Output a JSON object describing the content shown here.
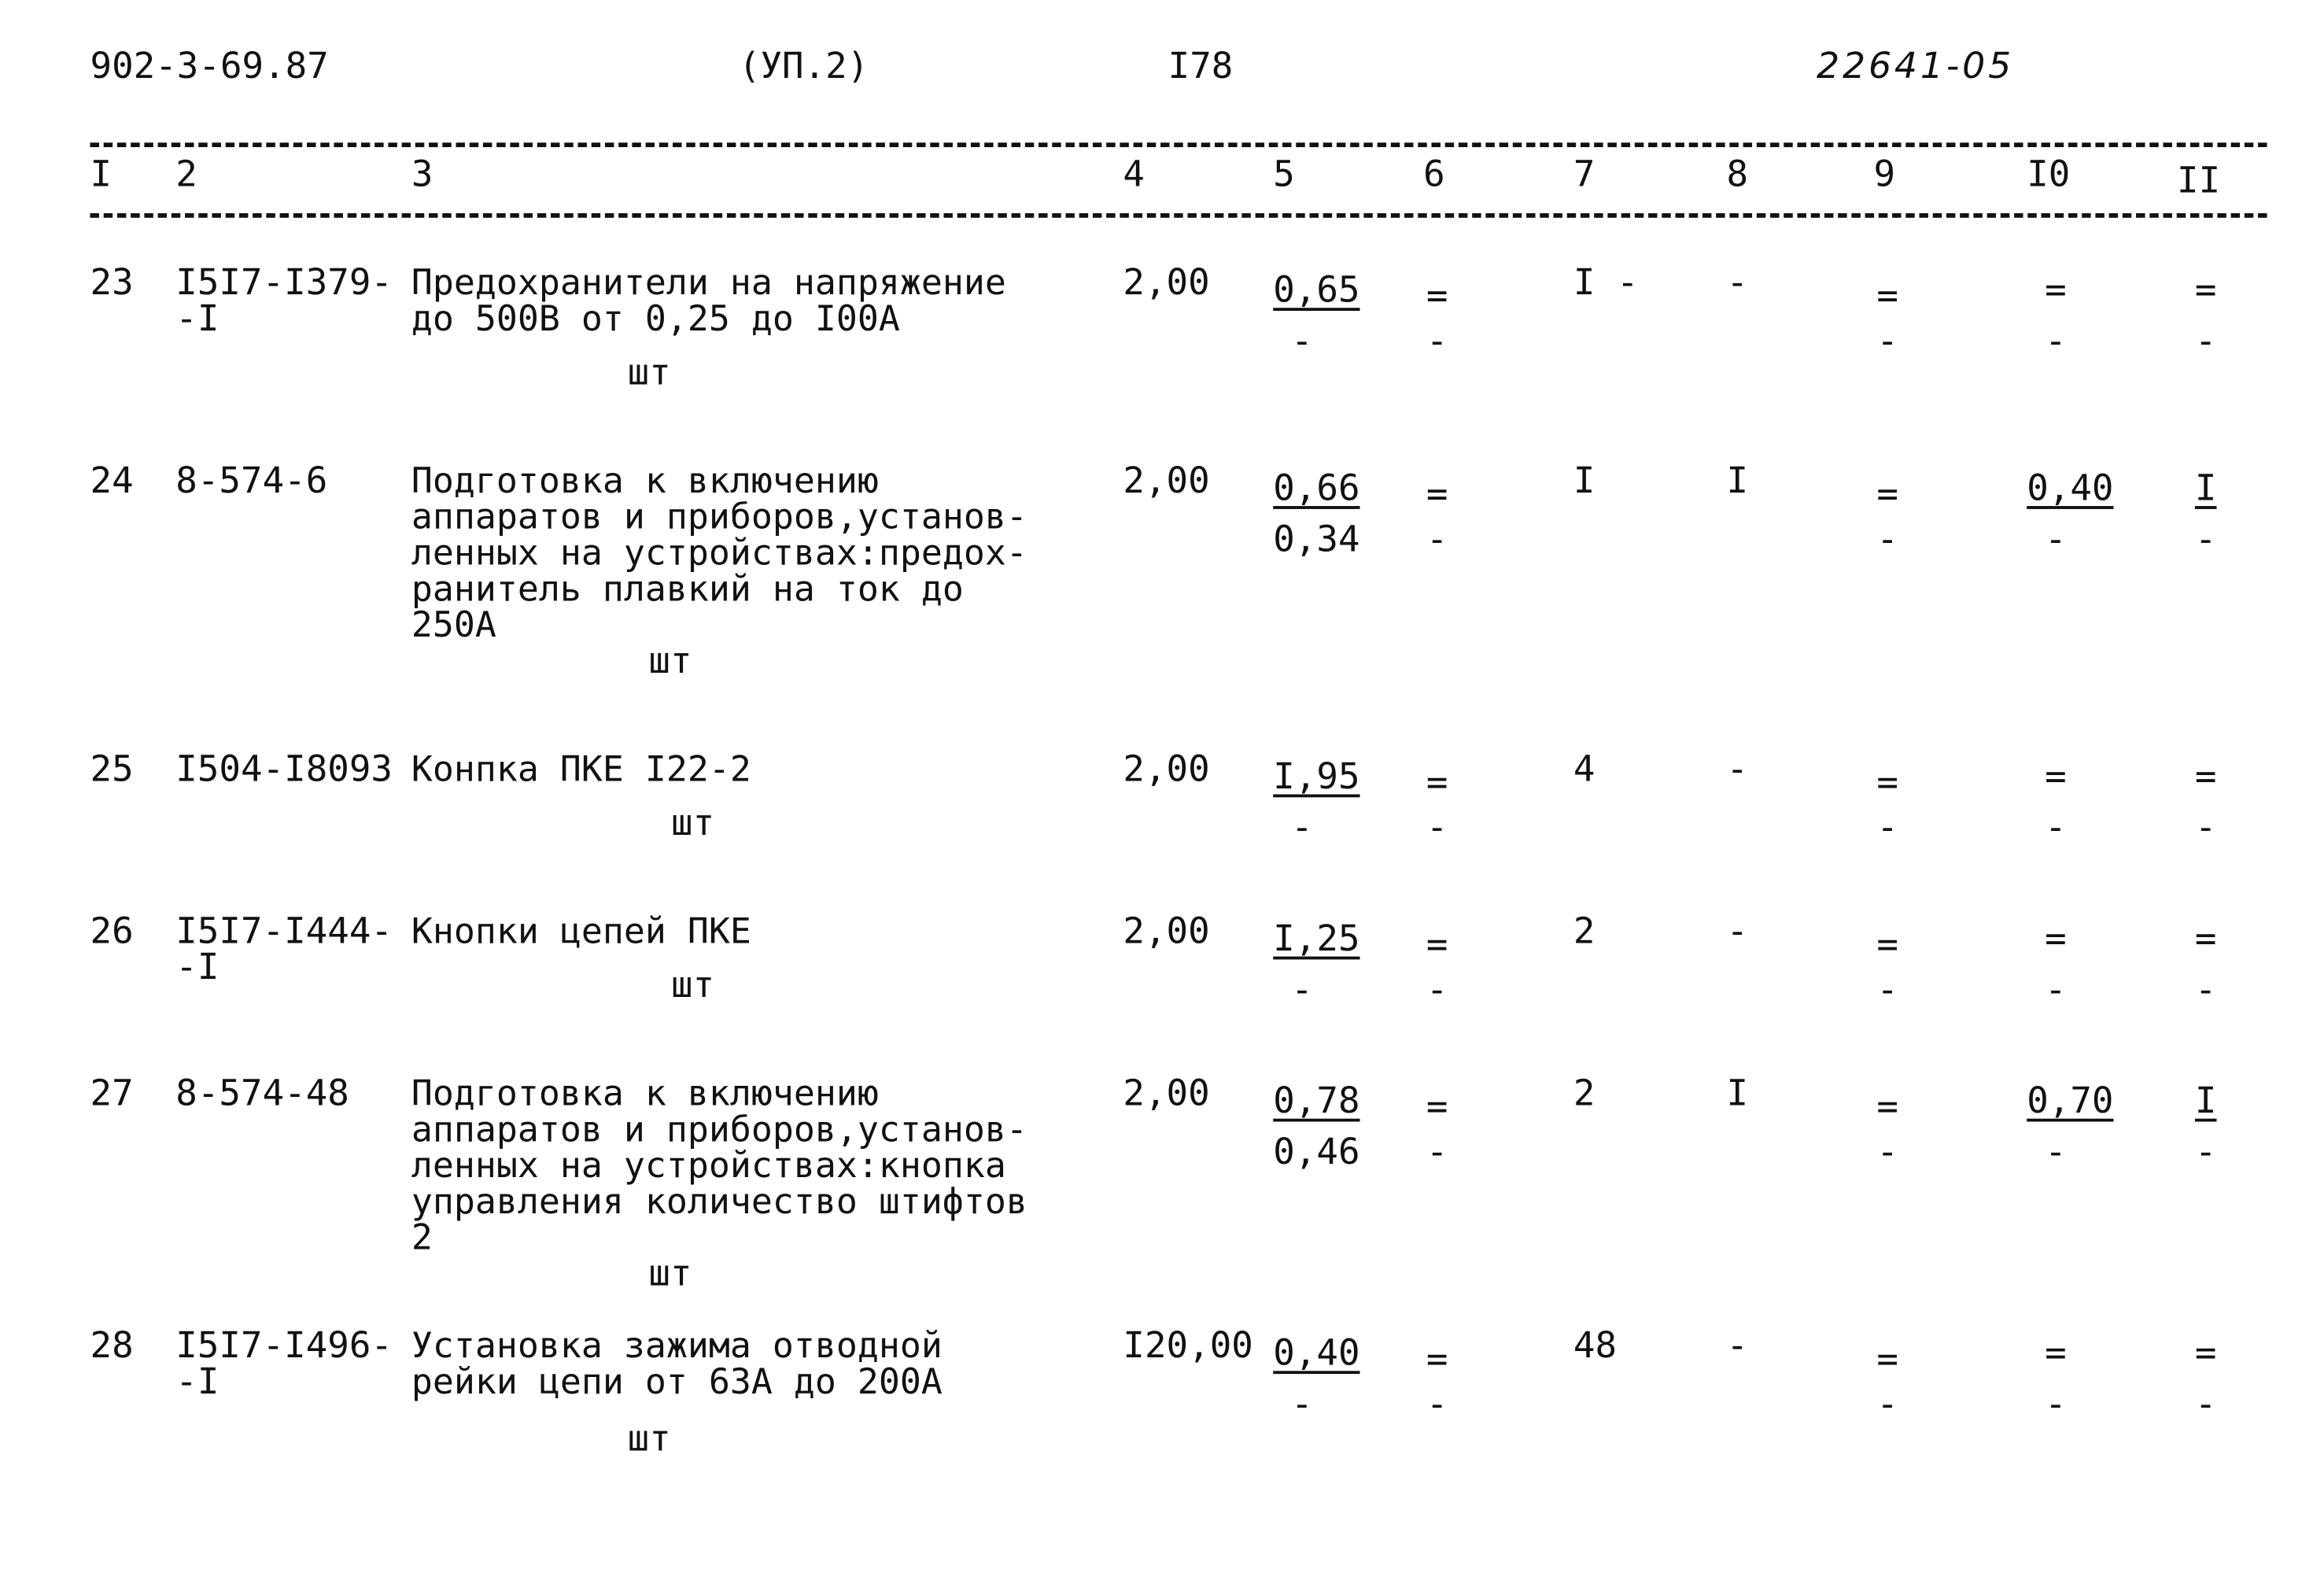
{
  "header": {
    "doc_code": "902-3-69.87",
    "section": "(УП.2)",
    "page": "I78",
    "handwritten_number": "22641-05"
  },
  "columns": [
    "I",
    "2",
    "3",
    "4",
    "5",
    "6",
    "7",
    "8",
    "9",
    "I0",
    "II"
  ],
  "rows": [
    {
      "num": "23",
      "code": [
        "I5I7-I379-",
        "-I"
      ],
      "desc": [
        "Предохранители на напряжение",
        "до 500В от 0,25 до I00А"
      ],
      "unit": "шт",
      "c4": "2,00",
      "c5": [
        {
          "t": "0,65",
          "u": true
        },
        {
          "t": "-"
        }
      ],
      "c6": [
        "=",
        "-"
      ],
      "c7": "I -",
      "c8": "-",
      "c9": [
        "=",
        "-"
      ],
      "c10": [
        {
          "t": "=",
          "u": false
        },
        {
          "t": "-"
        }
      ],
      "c11": [
        {
          "t": "="
        },
        {
          "t": "-"
        }
      ]
    },
    {
      "num": "24",
      "code": [
        "8-574-6"
      ],
      "desc": [
        "Подготовка к включению",
        "аппаратов и приборов,установ-",
        "ленных на устройствах:предох-",
        "ранитель плавкий на ток до",
        "250А"
      ],
      "unit": "шт",
      "c4": "2,00",
      "c5": [
        {
          "t": "0,66",
          "u": true
        },
        {
          "t": "0,34"
        }
      ],
      "c6": [
        "=",
        "-"
      ],
      "c7": "I",
      "c8": "I",
      "c9": [
        "=",
        "-"
      ],
      "c10": [
        {
          "t": "0,40",
          "u": true
        },
        {
          "t": "-"
        }
      ],
      "c11": [
        {
          "t": "I",
          "u": true
        },
        {
          "t": "-"
        }
      ]
    },
    {
      "num": "25",
      "code": [
        "I504-I8093"
      ],
      "desc": [
        "Конпка ПКЕ I22-2"
      ],
      "unit": "шт",
      "c4": "2,00",
      "c5": [
        {
          "t": "I,95",
          "u": true
        },
        {
          "t": "-"
        }
      ],
      "c6": [
        "=",
        "-"
      ],
      "c7": "4",
      "c8": "-",
      "c9": [
        "=",
        "-"
      ],
      "c10": [
        {
          "t": "="
        },
        {
          "t": "-"
        }
      ],
      "c11": [
        {
          "t": "="
        },
        {
          "t": "-"
        }
      ]
    },
    {
      "num": "26",
      "code": [
        "I5I7-I444-",
        "-I"
      ],
      "desc": [
        "Кнопки цепей ПКЕ"
      ],
      "unit": "шт",
      "c4": "2,00",
      "c5": [
        {
          "t": "I,25",
          "u": true
        },
        {
          "t": "-"
        }
      ],
      "c6": [
        "=",
        "-"
      ],
      "c7": "2",
      "c8": "-",
      "c9": [
        "=",
        "-"
      ],
      "c10": [
        {
          "t": "="
        },
        {
          "t": "-"
        }
      ],
      "c11": [
        {
          "t": "="
        },
        {
          "t": "-"
        }
      ]
    },
    {
      "num": "27",
      "code": [
        "8-574-48"
      ],
      "desc": [
        "Подготовка к включению",
        "аппаратов и приборов,установ-",
        "ленных на устройствах:кнопка",
        "управления количество штифтов",
        "2"
      ],
      "unit": "шт",
      "c4": "2,00",
      "c5": [
        {
          "t": "0,78",
          "u": true
        },
        {
          "t": "0,46"
        }
      ],
      "c6": [
        "=",
        "-"
      ],
      "c7": "2",
      "c8": "I",
      "c9": [
        "=",
        "-"
      ],
      "c10": [
        {
          "t": "0,70",
          "u": true
        },
        {
          "t": "-"
        }
      ],
      "c11": [
        {
          "t": "I",
          "u": true
        },
        {
          "t": "-"
        }
      ]
    },
    {
      "num": "28",
      "code": [
        "I5I7-I496-",
        "-I"
      ],
      "desc": [
        "Установка зажима отводной",
        "рейки цепи от 63А до 200А"
      ],
      "unit": "шт",
      "c4": "I20,00",
      "c5": [
        {
          "t": "0,40",
          "u": true
        },
        {
          "t": "-"
        }
      ],
      "c6": [
        "=",
        "-"
      ],
      "c7": "48",
      "c8": "-",
      "c9": [
        "=",
        "-"
      ],
      "c10": [
        {
          "t": "="
        },
        {
          "t": "-"
        }
      ],
      "c11": [
        {
          "t": "="
        },
        {
          "t": "-"
        }
      ]
    }
  ]
}
